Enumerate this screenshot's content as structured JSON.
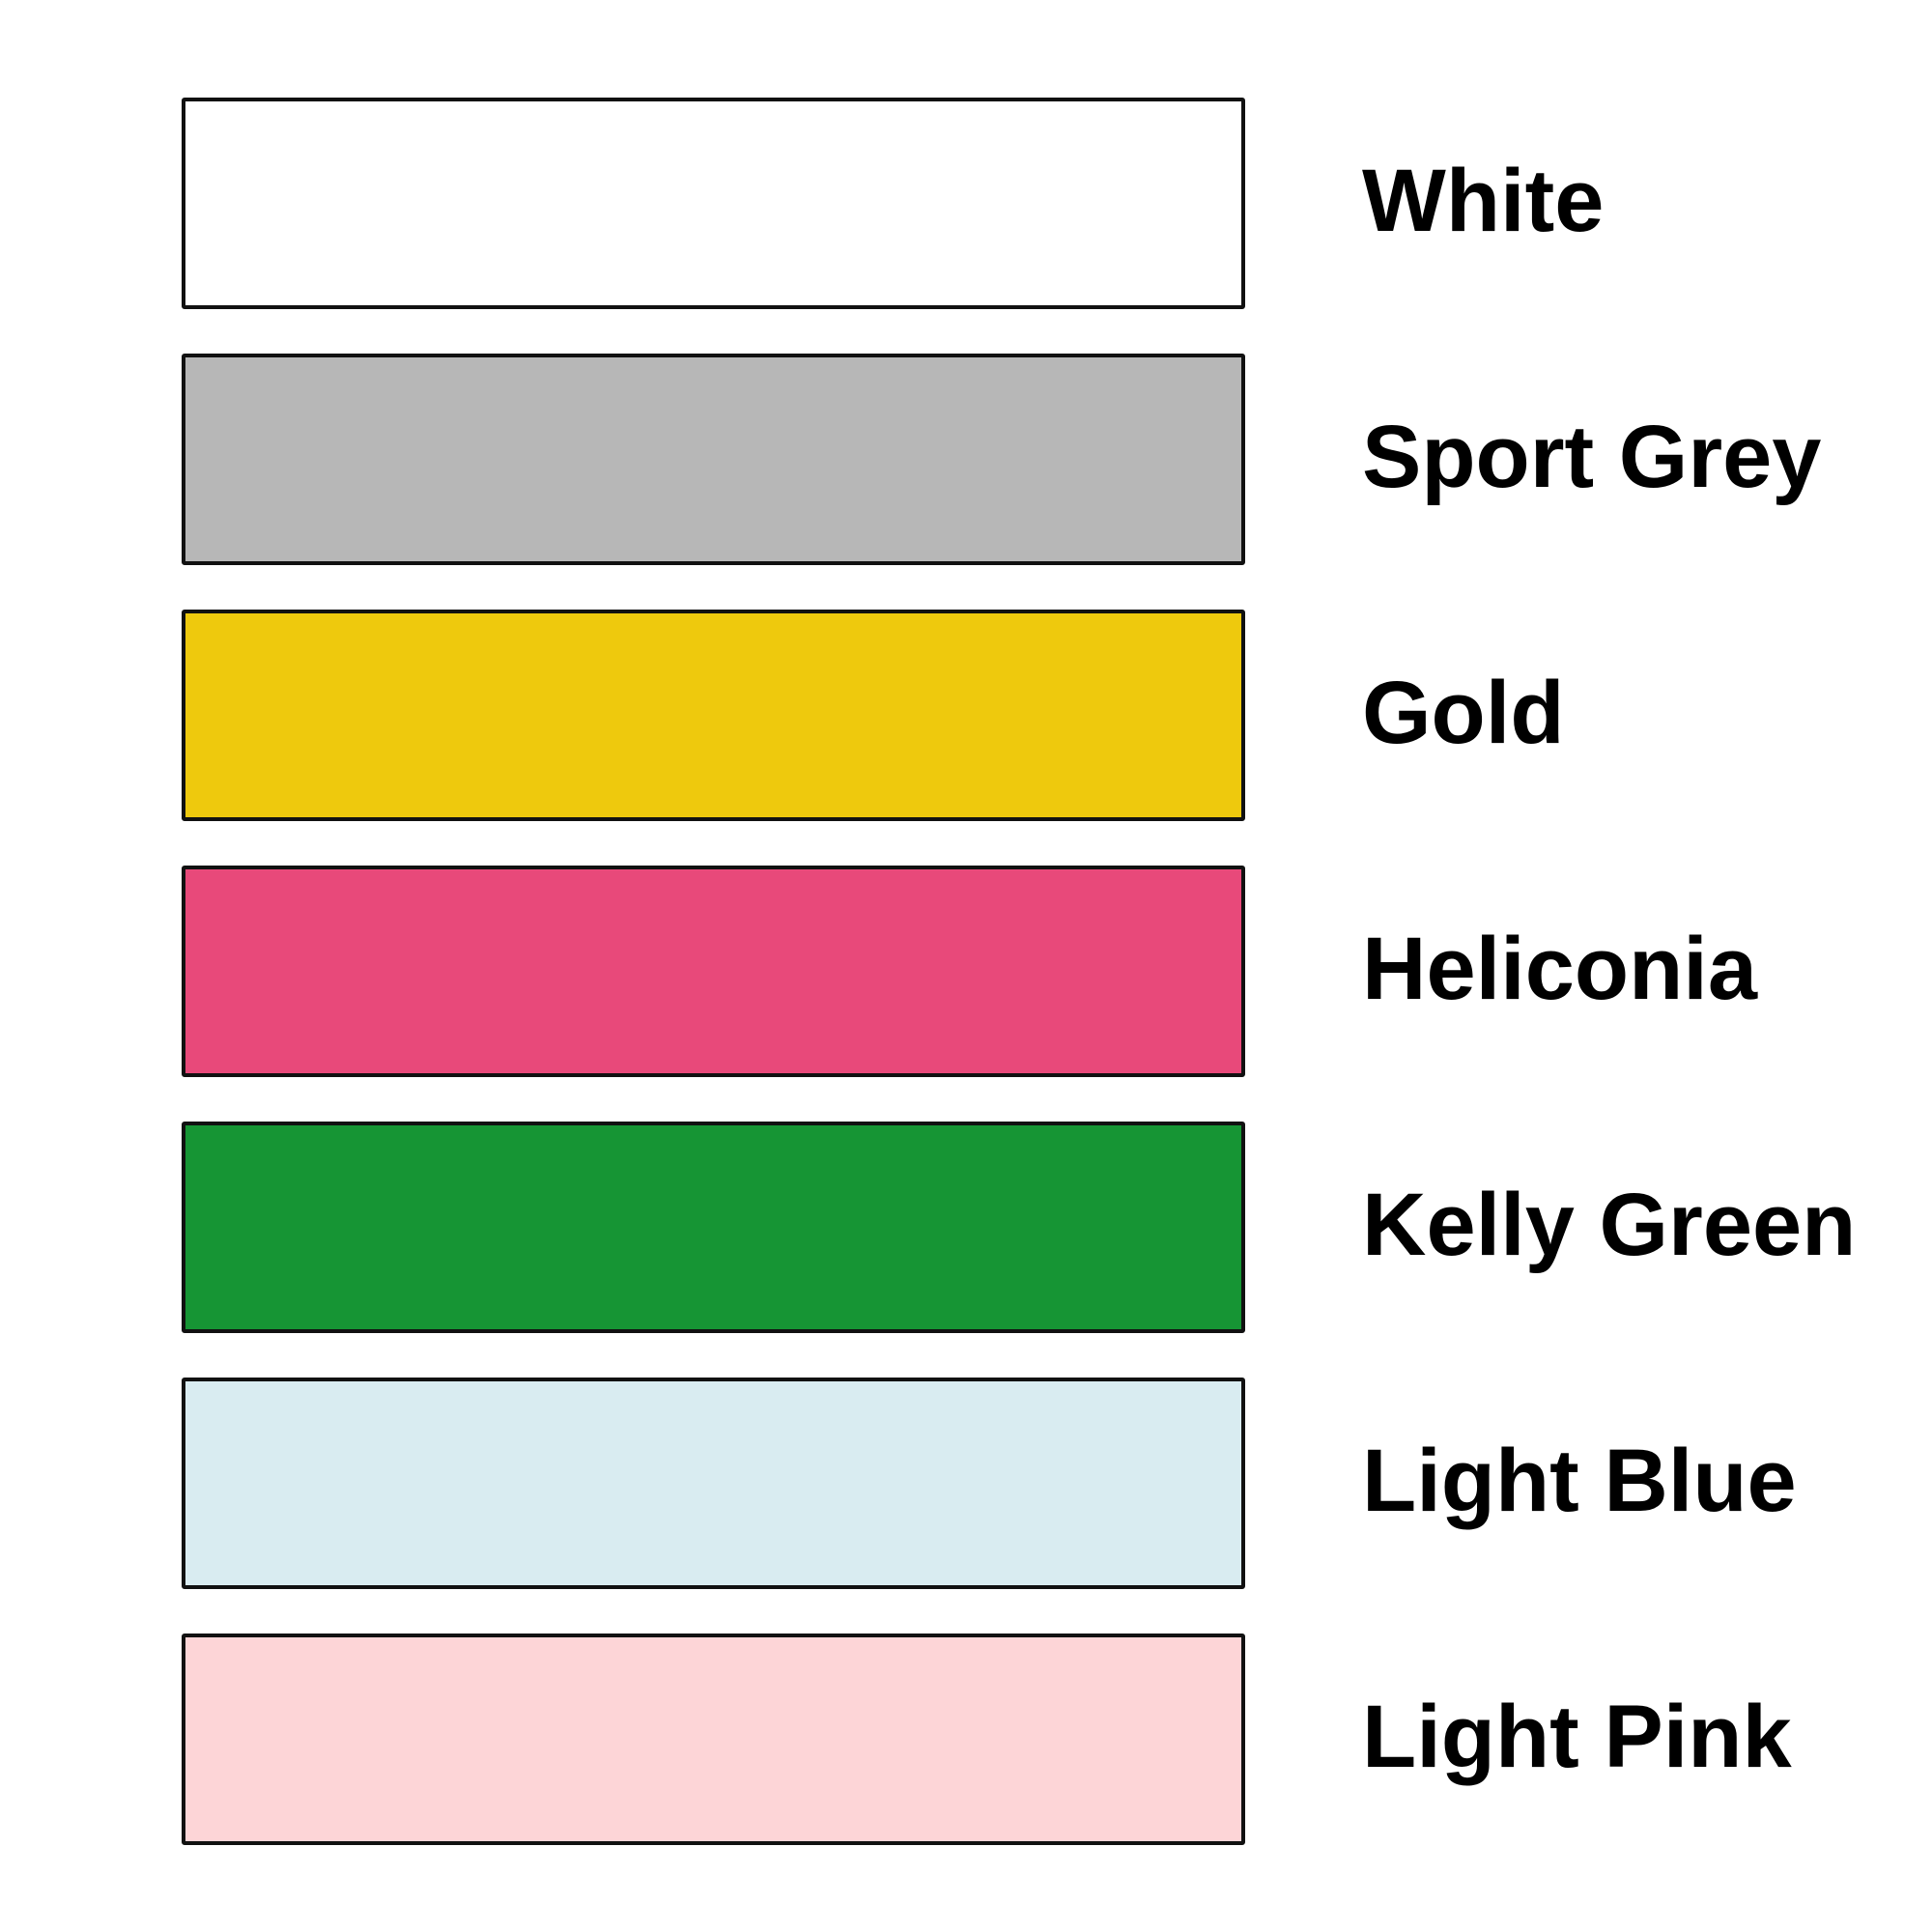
{
  "swatches": [
    {
      "label": "White",
      "color": "#ffffff"
    },
    {
      "label": "Sport Grey",
      "color": "#b7b7b7"
    },
    {
      "label": "Gold",
      "color": "#eec90d"
    },
    {
      "label": "Heliconia",
      "color": "#e8497a"
    },
    {
      "label": "Kelly Green",
      "color": "#169534"
    },
    {
      "label": "Light Blue",
      "color": "#d9ecf1"
    },
    {
      "label": "Light Pink",
      "color": "#fdd5d7"
    }
  ]
}
